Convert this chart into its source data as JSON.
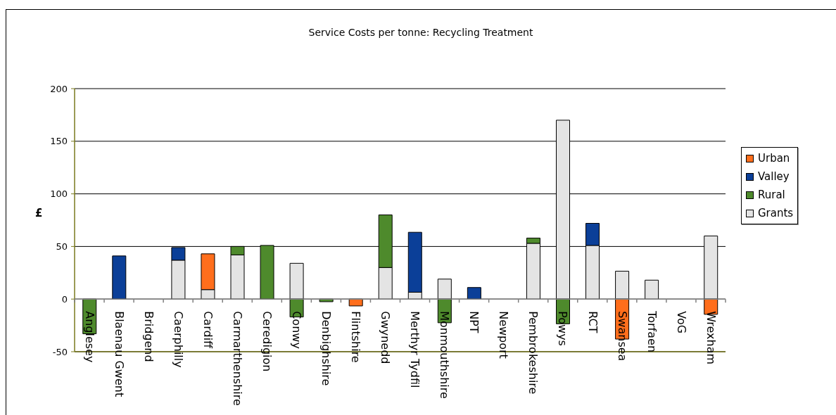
{
  "chart_data": {
    "type": "bar",
    "title": "Service Costs per tonne: Recycling Treatment",
    "ylabel": "£",
    "categories": [
      "Anglesey",
      "Blaenau Gwent",
      "Bridgend",
      "Caerphilly",
      "Cardiff",
      "Carmarthenshire",
      "Ceredigion",
      "Conwy",
      "Denbighshire",
      "Flintshire",
      "Gwynedd",
      "Merthyr Tydfil",
      "Monmouthshire",
      "NPT",
      "Newport",
      "Pembrokeshire",
      "Powys",
      "RCT",
      "Swansea",
      "Torfaen",
      "VoG",
      "Wrexham"
    ],
    "series": [
      {
        "name": "Grants",
        "color": "#e4e4e4",
        "values": [
          null,
          null,
          null,
          37,
          9,
          42,
          null,
          34,
          null,
          null,
          30,
          6.5,
          19,
          null,
          null,
          53,
          170,
          51,
          26.5,
          18,
          null,
          60
        ]
      },
      {
        "name": "Rural",
        "color": "#4e8a2c",
        "values": [
          -33,
          null,
          null,
          null,
          null,
          8,
          51,
          -17,
          -2.5,
          null,
          50,
          null,
          -22.5,
          null,
          null,
          5,
          -23.5,
          null,
          null,
          null,
          null,
          null
        ]
      },
      {
        "name": "Valley",
        "color": "#0b3f98",
        "values": [
          null,
          41,
          null,
          12,
          null,
          null,
          null,
          null,
          null,
          null,
          null,
          57,
          null,
          11,
          null,
          null,
          null,
          21,
          null,
          null,
          null,
          null
        ]
      },
      {
        "name": "Urban",
        "color": "#ff6e1c",
        "values": [
          null,
          null,
          null,
          null,
          34,
          null,
          null,
          null,
          null,
          -6.5,
          null,
          null,
          null,
          null,
          null,
          null,
          null,
          null,
          -38,
          null,
          null,
          -14.5
        ]
      }
    ],
    "stacked": true,
    "ylim": [
      -50,
      200
    ],
    "yticks": [
      -50,
      0,
      50,
      100,
      150,
      200
    ],
    "grid": "y",
    "legend": "right"
  }
}
